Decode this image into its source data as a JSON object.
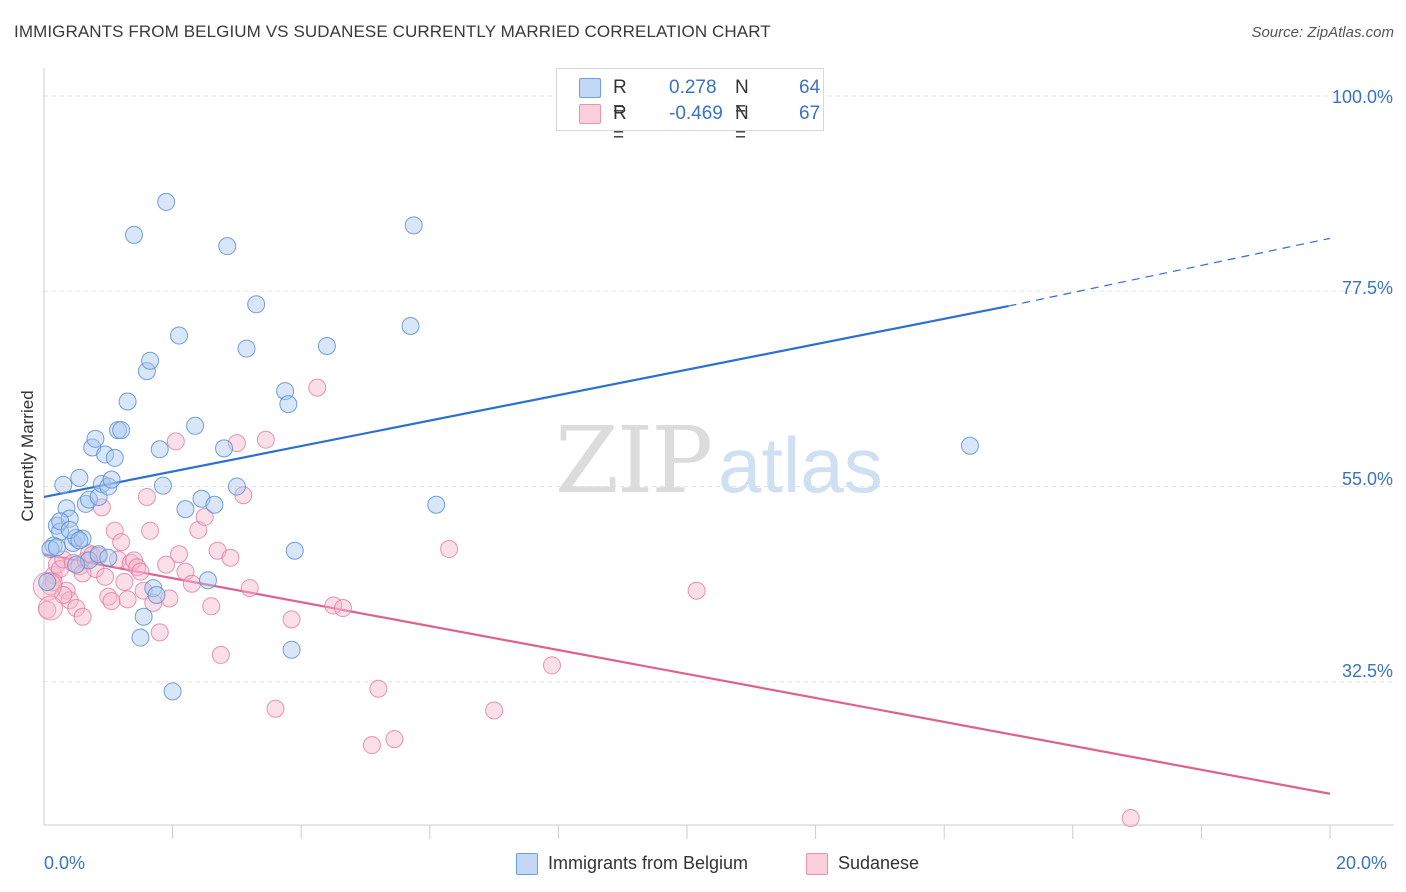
{
  "header": {
    "title": "IMMIGRANTS FROM BELGIUM VS SUDANESE CURRENTLY MARRIED CORRELATION CHART",
    "source": "Source: ZipAtlas.com"
  },
  "watermark": {
    "zip": "ZIP",
    "atlas": "atlas"
  },
  "legend": {
    "rows": [
      {
        "r_label": "R =",
        "r_value": "0.278",
        "n_label": "N =",
        "n_value": "64",
        "color": "#a9c8f0"
      },
      {
        "r_label": "R =",
        "r_value": "-0.469",
        "n_label": "N =",
        "n_value": "67",
        "color": "#f6b8cb"
      }
    ]
  },
  "bottom_legend": [
    {
      "label": "Immigrants from Belgium",
      "color": "#a9c8f0"
    },
    {
      "label": "Sudanese",
      "color": "#f6b8cb"
    }
  ],
  "chart_data": {
    "type": "scatter",
    "ylabel": "Currently Married",
    "xlabel": "",
    "xlim": [
      0,
      20
    ],
    "ylim": [
      16,
      103
    ],
    "x_tick_labels": [
      {
        "value": 0,
        "label": "0.0%"
      },
      {
        "value": 20,
        "label": "20.0%"
      }
    ],
    "y_tick_labels": [
      {
        "value": 32.5,
        "label": "32.5%"
      },
      {
        "value": 55.0,
        "label": "55.0%"
      },
      {
        "value": 77.5,
        "label": "77.5%"
      },
      {
        "value": 100.0,
        "label": "100.0%"
      }
    ],
    "y_gridlines": [
      32.5,
      55.0,
      77.5,
      100.0
    ],
    "grid": true,
    "legend_position": "top-center",
    "colors": {
      "belgium_fill": "#a9c8f0",
      "belgium_stroke": "#5b8fd6",
      "belgium_line": "#2e6fd0",
      "sudanese_fill": "#f6b8cb",
      "sudanese_stroke": "#e07aa0",
      "sudanese_line": "#e0608e"
    },
    "series": [
      {
        "name": "Immigrants from Belgium",
        "trend": {
          "x0": 0.0,
          "y0": 53.8,
          "x1": 15.0,
          "y1": 75.8,
          "dash_to_x": 20.0,
          "dash_to_y": 83.6
        },
        "points": [
          [
            0.15,
            48.2
          ],
          [
            0.2,
            50.5
          ],
          [
            0.25,
            49.8
          ],
          [
            0.3,
            55.2
          ],
          [
            0.35,
            52.5
          ],
          [
            0.4,
            51.3
          ],
          [
            0.45,
            48.5
          ],
          [
            0.5,
            49.1
          ],
          [
            0.55,
            56.0
          ],
          [
            0.6,
            49.0
          ],
          [
            0.65,
            53.0
          ],
          [
            0.7,
            53.5
          ],
          [
            0.75,
            59.5
          ],
          [
            0.8,
            60.5
          ],
          [
            0.85,
            53.8
          ],
          [
            0.9,
            55.3
          ],
          [
            0.95,
            58.7
          ],
          [
            1.0,
            55.0
          ],
          [
            1.05,
            55.8
          ],
          [
            1.1,
            58.3
          ],
          [
            1.15,
            61.5
          ],
          [
            1.2,
            61.5
          ],
          [
            1.3,
            64.8
          ],
          [
            1.4,
            84.0
          ],
          [
            1.5,
            37.6
          ],
          [
            1.55,
            40.0
          ],
          [
            1.6,
            68.3
          ],
          [
            1.65,
            69.5
          ],
          [
            1.7,
            43.3
          ],
          [
            1.75,
            42.5
          ],
          [
            1.8,
            59.3
          ],
          [
            1.85,
            55.1
          ],
          [
            1.9,
            87.8
          ],
          [
            2.0,
            31.4
          ],
          [
            2.1,
            72.4
          ],
          [
            2.2,
            52.4
          ],
          [
            2.35,
            62.0
          ],
          [
            2.45,
            53.6
          ],
          [
            2.55,
            44.2
          ],
          [
            2.65,
            52.9
          ],
          [
            2.8,
            59.4
          ],
          [
            2.85,
            82.7
          ],
          [
            3.0,
            55.0
          ],
          [
            3.15,
            70.9
          ],
          [
            3.3,
            76.0
          ],
          [
            3.75,
            66.0
          ],
          [
            3.8,
            64.5
          ],
          [
            3.85,
            36.2
          ],
          [
            3.9,
            47.6
          ],
          [
            4.4,
            71.2
          ],
          [
            5.75,
            85.1
          ],
          [
            5.7,
            73.5
          ],
          [
            6.1,
            52.9
          ],
          [
            14.4,
            59.7
          ],
          [
            0.1,
            47.8
          ],
          [
            0.2,
            48.0
          ],
          [
            0.05,
            44.0
          ],
          [
            0.25,
            51.0
          ],
          [
            0.4,
            50.0
          ],
          [
            0.55,
            48.8
          ],
          [
            0.7,
            46.5
          ],
          [
            0.85,
            47.2
          ],
          [
            1.0,
            46.8
          ],
          [
            0.5,
            46.0
          ]
        ]
      },
      {
        "name": "Sudanese",
        "trend": {
          "x0": 0.0,
          "y0": 47.2,
          "x1": 20.0,
          "y1": 19.6
        },
        "points": [
          [
            0.05,
            40.8
          ],
          [
            0.1,
            43.5
          ],
          [
            0.15,
            44.8
          ],
          [
            0.2,
            46.0
          ],
          [
            0.25,
            45.5
          ],
          [
            0.3,
            46.6
          ],
          [
            0.35,
            43.0
          ],
          [
            0.4,
            41.9
          ],
          [
            0.45,
            46.2
          ],
          [
            0.5,
            41.0
          ],
          [
            0.55,
            45.8
          ],
          [
            0.6,
            40.0
          ],
          [
            0.65,
            46.5
          ],
          [
            0.7,
            47.3
          ],
          [
            0.75,
            47.1
          ],
          [
            0.8,
            45.5
          ],
          [
            0.85,
            47.0
          ],
          [
            0.9,
            52.6
          ],
          [
            0.95,
            44.6
          ],
          [
            1.0,
            42.3
          ],
          [
            1.05,
            41.8
          ],
          [
            1.1,
            49.9
          ],
          [
            1.15,
            46.6
          ],
          [
            1.2,
            48.6
          ],
          [
            1.25,
            44.0
          ],
          [
            1.3,
            42.0
          ],
          [
            1.35,
            46.2
          ],
          [
            1.4,
            46.5
          ],
          [
            1.45,
            45.7
          ],
          [
            1.5,
            45.2
          ],
          [
            1.55,
            43.0
          ],
          [
            1.6,
            53.8
          ],
          [
            1.65,
            49.9
          ],
          [
            1.7,
            41.6
          ],
          [
            1.8,
            38.2
          ],
          [
            1.9,
            46.0
          ],
          [
            1.95,
            42.1
          ],
          [
            2.05,
            60.2
          ],
          [
            2.1,
            47.2
          ],
          [
            2.2,
            45.2
          ],
          [
            2.3,
            43.8
          ],
          [
            2.4,
            50.0
          ],
          [
            2.5,
            51.5
          ],
          [
            2.6,
            41.2
          ],
          [
            2.7,
            47.6
          ],
          [
            2.75,
            35.6
          ],
          [
            2.9,
            46.8
          ],
          [
            3.0,
            60.0
          ],
          [
            3.1,
            54.0
          ],
          [
            3.2,
            43.3
          ],
          [
            3.45,
            60.4
          ],
          [
            3.6,
            29.4
          ],
          [
            3.85,
            39.7
          ],
          [
            4.25,
            66.4
          ],
          [
            4.5,
            41.3
          ],
          [
            4.65,
            41.0
          ],
          [
            5.1,
            25.2
          ],
          [
            5.2,
            31.7
          ],
          [
            5.45,
            25.9
          ],
          [
            6.3,
            47.8
          ],
          [
            7.0,
            29.2
          ],
          [
            7.9,
            34.4
          ],
          [
            10.15,
            43.0
          ],
          [
            16.9,
            16.8
          ],
          [
            0.15,
            44.0
          ],
          [
            0.3,
            42.5
          ],
          [
            0.6,
            45.0
          ]
        ]
      }
    ]
  }
}
